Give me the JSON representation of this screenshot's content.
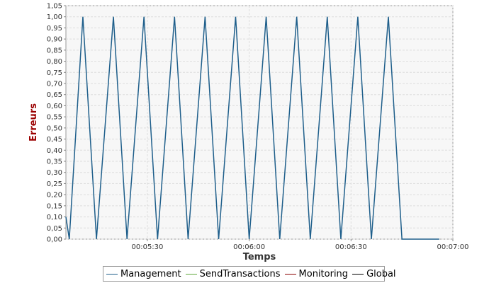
{
  "chart_data": {
    "type": "line",
    "xlabel": "Temps",
    "ylabel": "Erreurs",
    "xlim": [
      "00:05:06",
      "00:07:00"
    ],
    "ylim": [
      0,
      1.05
    ],
    "y_ticks": [
      "0,00",
      "0,05",
      "0,10",
      "0,15",
      "0,20",
      "0,25",
      "0,30",
      "0,35",
      "0,40",
      "0,45",
      "0,50",
      "0,55",
      "0,60",
      "0,65",
      "0,70",
      "0,75",
      "0,80",
      "0,85",
      "0,90",
      "0,95",
      "1,00",
      "1,05"
    ],
    "x_ticks": [
      "00:05:30",
      "00:06:00",
      "00:06:30",
      "00:07:00"
    ],
    "grid": true,
    "legend_position": "bottom",
    "series": [
      {
        "name": "Management",
        "color": "#1f5f8b",
        "points": [
          [
            "00:05:06",
            0.1
          ],
          [
            "00:05:07",
            0
          ],
          [
            "00:05:11",
            1
          ],
          [
            "00:05:15",
            0
          ],
          [
            "00:05:20",
            1
          ],
          [
            "00:05:24",
            0
          ],
          [
            "00:05:29",
            1
          ],
          [
            "00:05:33",
            0
          ],
          [
            "00:05:38",
            1
          ],
          [
            "00:05:42",
            0
          ],
          [
            "00:05:47",
            1
          ],
          [
            "00:05:51",
            0
          ],
          [
            "00:05:56",
            1
          ],
          [
            "00:06:00",
            0
          ],
          [
            "00:06:05",
            1
          ],
          [
            "00:06:09",
            0
          ],
          [
            "00:06:14",
            1
          ],
          [
            "00:06:18",
            0
          ],
          [
            "00:06:23",
            1
          ],
          [
            "00:06:27",
            0
          ],
          [
            "00:06:32",
            1
          ],
          [
            "00:06:36",
            0
          ],
          [
            "00:06:41",
            1
          ],
          [
            "00:06:45",
            0
          ],
          [
            "00:06:50",
            0
          ],
          [
            "00:06:56",
            0
          ]
        ]
      },
      {
        "name": "SendTransactions",
        "color": "#5fa83a",
        "points": []
      },
      {
        "name": "Monitoring",
        "color": "#8b0000",
        "points": []
      },
      {
        "name": "Global",
        "color": "#000000",
        "points": []
      }
    ],
    "ylabel_color": "#9b0000"
  }
}
